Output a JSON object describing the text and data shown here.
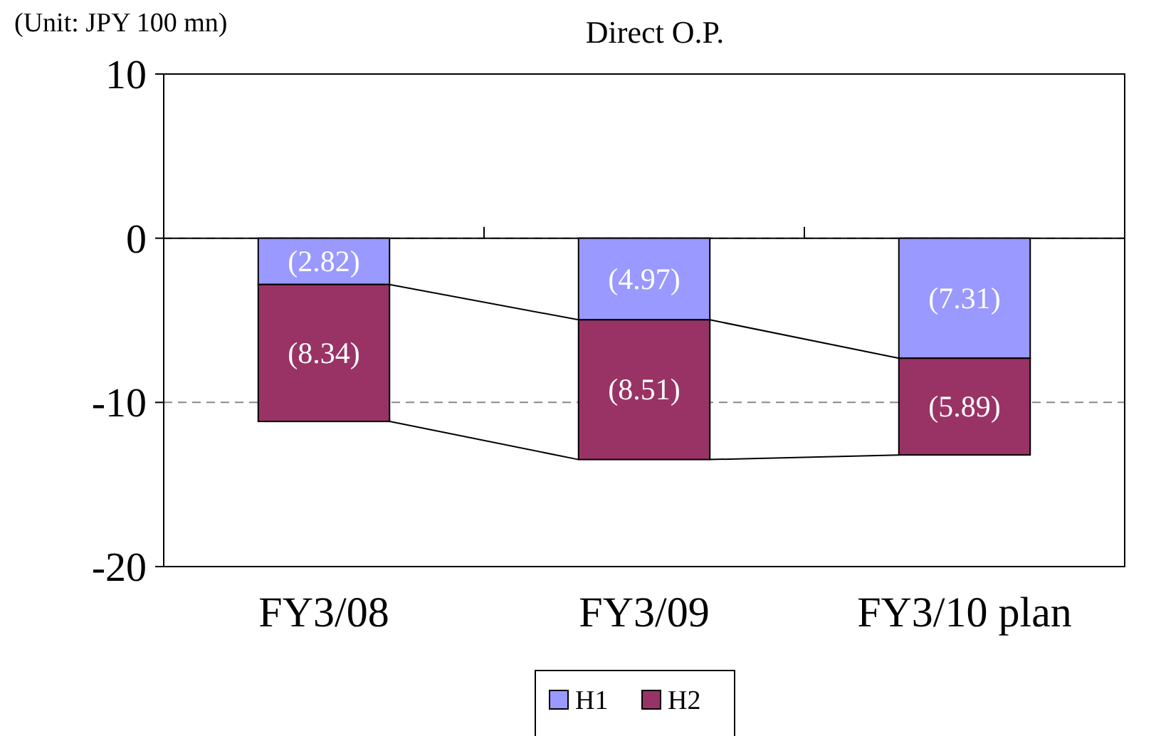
{
  "chart_data": {
    "type": "bar",
    "title": "Direct O.P.",
    "annotations": [
      "(Unit: JPY 100 mn)"
    ],
    "categories": [
      "FY3/08",
      "FY3/09",
      "FY3/10 plan"
    ],
    "stacked": true,
    "series": [
      {
        "name": "H1",
        "color": "#9999ff",
        "values": [
          -2.82,
          -4.97,
          -7.31
        ],
        "value_labels": [
          "(2.82)",
          "(4.97)",
          "(7.31)"
        ]
      },
      {
        "name": "H2",
        "color": "#993366",
        "values": [
          -8.34,
          -8.51,
          -5.89
        ],
        "value_labels": [
          "(8.34)",
          "(8.51)",
          "(5.89)"
        ]
      }
    ],
    "ylim": [
      -20,
      10
    ],
    "yticks": [
      -20,
      -10,
      0,
      10
    ],
    "grid": "y",
    "legend": "bottom"
  }
}
